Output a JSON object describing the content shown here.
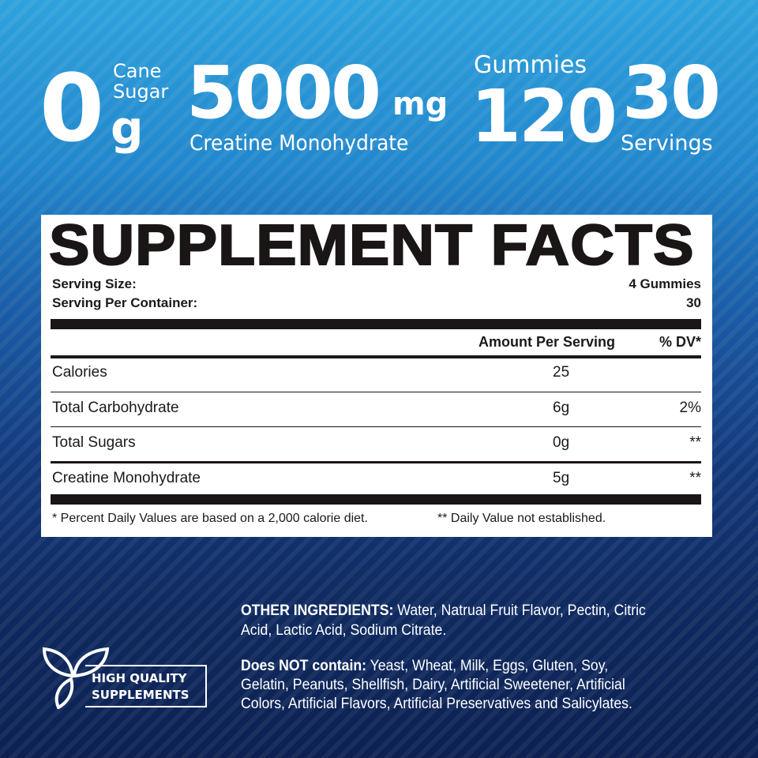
{
  "header": {
    "zero": "0",
    "zero_unit": "g",
    "cane": "Cane",
    "sugar": "Sugar",
    "creatine_amount": "5000",
    "creatine_unit": "mg",
    "creatine_label": "Creatine Monohydrate",
    "gummies_label": "Gummies",
    "gummies_count": "120",
    "servings_count": "30",
    "servings_label": "Servings"
  },
  "facts": {
    "title": "SUPPLEMENT FACTS",
    "serving_size_label": "Serving Size:",
    "serving_size_value": "4 Gummies",
    "servings_per_container_label": "Serving Per Container:",
    "servings_per_container_value": "30",
    "col_amount": "Amount Per Serving",
    "col_dv": "% DV*",
    "rows": [
      {
        "name": "Calories",
        "amount": "25",
        "dv": ""
      },
      {
        "name": "Total Carbohydrate",
        "amount": "6g",
        "dv": "2%"
      },
      {
        "name": "Total Sugars",
        "amount": "0g",
        "dv": "**"
      },
      {
        "name": "Creatine Monohydrate",
        "amount": "5g",
        "dv": "**"
      }
    ],
    "footnote1": "* Percent Daily Values are based on a 2,000 calorie diet.",
    "footnote2": "** Daily Value not established."
  },
  "ingredients": {
    "other_label": "OTHER INGREDIENTS:",
    "other_line1": " Water, Natrual Fruit Flavor, Pectin, Citric",
    "other_line2": "Acid, Lactic Acid, Sodium Citrate.",
    "not_label": "Does NOT contain:",
    "not_line1": " Yeast, Wheat, Milk, Eggs, Gluten, Soy,",
    "not_line2": "Gelatin, Peanuts, Shellfish, Dairy, Artificial Sweetener, Artificial",
    "not_line3": "Colors, Artificial Flavors, Artificial Preservatives and Salicylates."
  },
  "badge": {
    "icon": "leaf-icon",
    "line1": "HIGH QUALITY",
    "line2": "SUPPLEMENTS"
  }
}
